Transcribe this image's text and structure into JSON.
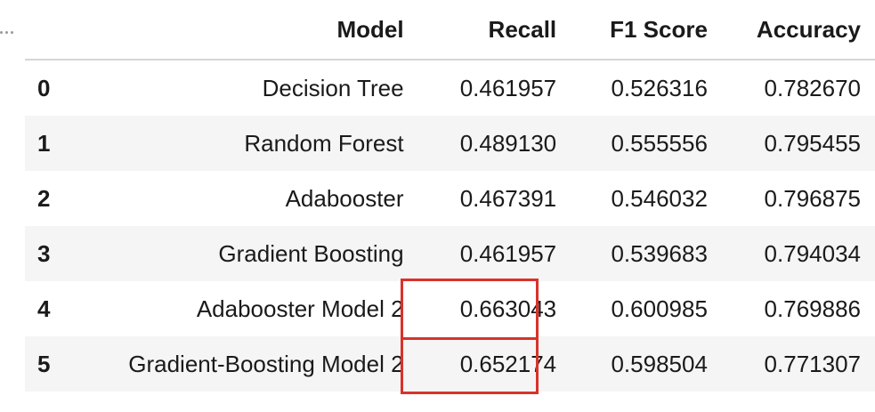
{
  "table": {
    "columns": [
      "",
      "Model",
      "Recall",
      "F1 Score",
      "Accuracy"
    ],
    "rows": [
      {
        "index": "0",
        "model": "Decision Tree",
        "recall": "0.461957",
        "f1": "0.526316",
        "accuracy": "0.782670"
      },
      {
        "index": "1",
        "model": "Random Forest",
        "recall": "0.489130",
        "f1": "0.555556",
        "accuracy": "0.795455"
      },
      {
        "index": "2",
        "model": "Adabooster",
        "recall": "0.467391",
        "f1": "0.546032",
        "accuracy": "0.796875"
      },
      {
        "index": "3",
        "model": "Gradient Boosting",
        "recall": "0.461957",
        "f1": "0.539683",
        "accuracy": "0.794034"
      },
      {
        "index": "4",
        "model": "Adabooster Model 2",
        "recall": "0.663043",
        "f1": "0.600985",
        "accuracy": "0.769886"
      },
      {
        "index": "5",
        "model": "Gradient-Boosting Model 2",
        "recall": "0.652174",
        "f1": "0.598504",
        "accuracy": "0.771307"
      }
    ]
  },
  "highlight": {
    "color": "#d9322b",
    "column": "Recall",
    "row_indices": [
      "4",
      "5"
    ]
  },
  "icons": {
    "output_menu": "ellipsis-icon"
  }
}
